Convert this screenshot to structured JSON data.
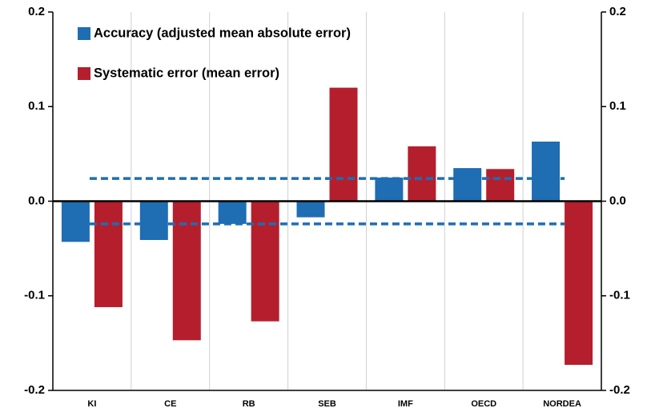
{
  "chart_data": {
    "type": "bar",
    "categories": [
      "KI",
      "CE",
      "RB",
      "SEB",
      "IMF",
      "OECD",
      "NORDEA"
    ],
    "series": [
      {
        "name": "Accuracy (adjusted mean absolute error)",
        "color": "#1f6db3",
        "values": [
          -0.043,
          -0.041,
          -0.024,
          -0.017,
          0.025,
          0.035,
          0.063
        ]
      },
      {
        "name": "Systematic error (mean error)",
        "color": "#b51f2d",
        "values": [
          -0.112,
          -0.147,
          -0.127,
          0.12,
          0.058,
          0.034,
          -0.173
        ]
      }
    ],
    "reference_lines": {
      "values": [
        0.024,
        -0.024
      ],
      "color": "#1f6db3"
    },
    "ylim": [
      -0.2,
      0.2
    ],
    "yticks": [
      -0.2,
      -0.1,
      {
        "value": 0,
        "label": "0.0"
      },
      0.1,
      0.2
    ],
    "y2lim": [
      -0.2,
      0.2
    ],
    "y2ticks": [
      -0.2,
      -0.1,
      {
        "value": 0,
        "label": "0.0"
      },
      0.1,
      0.2
    ],
    "grid": true,
    "legend": "upper left"
  }
}
